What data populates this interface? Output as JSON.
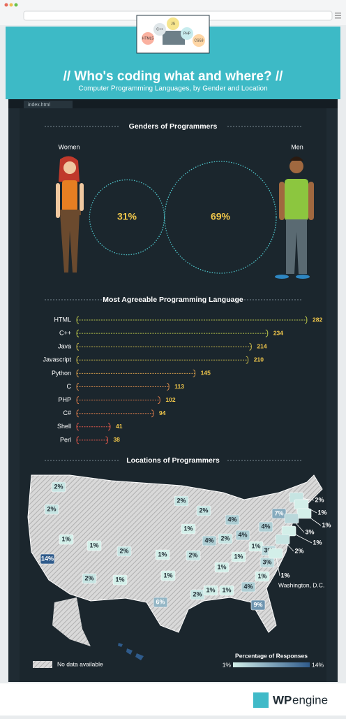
{
  "header": {
    "title": "//  Who's coding what and where?  //",
    "subtitle": "Computer Programming Languages, by Gender and Location",
    "tab": "index.html",
    "icons": [
      "JS",
      "C++",
      "HTML5",
      "PHP",
      "CSS3"
    ]
  },
  "chart_data": [
    {
      "type": "bubble",
      "title": "Genders of Programmers",
      "categories": [
        "Women",
        "Men"
      ],
      "values": [
        31,
        69
      ],
      "value_labels": [
        "31%",
        "69%"
      ],
      "color": "#4ec3c9"
    },
    {
      "type": "bar",
      "title": "Most Agreeable Programming Language",
      "categories": [
        "HTML",
        "C++",
        "Java",
        "Javascript",
        "Python",
        "C",
        "PHP",
        "C#",
        "Shell",
        "Perl"
      ],
      "values": [
        282,
        234,
        214,
        210,
        145,
        113,
        102,
        94,
        41,
        38
      ],
      "colors": [
        "#b7c24a",
        "#b7c24a",
        "#c6b64a",
        "#c6b64a",
        "#d19a4a",
        "#d4894a",
        "#d77a4a",
        "#d77a4a",
        "#e0584a",
        "#e0584a"
      ],
      "label_color": "#f2c84b"
    },
    {
      "type": "map",
      "title": "Locations of Programmers",
      "values": [
        2,
        2,
        14,
        1,
        1,
        2,
        2,
        1,
        1,
        2,
        1,
        6,
        2,
        2,
        1,
        4,
        2,
        4,
        4,
        1,
        1,
        4,
        7,
        3,
        3,
        1,
        2,
        1,
        1,
        4,
        9,
        1,
        2,
        1,
        1,
        3,
        1,
        2,
        1
      ],
      "value_labels": [
        "2%",
        "2%",
        "14%",
        "1%",
        "1%",
        "2%",
        "2%",
        "1%",
        "1%",
        "2%",
        "1%",
        "6%",
        "2%",
        "2%",
        "1%",
        "4%",
        "2%",
        "4%",
        "4%",
        "1%",
        "1%",
        "4%",
        "7%",
        "3%",
        "3%",
        "1%",
        "2%",
        "1%",
        "1%",
        "4%",
        "9%",
        "1%",
        "2%",
        "1%",
        "1%",
        "3%",
        "1%",
        "2%",
        "1%"
      ],
      "annotation": "Washington, D.C.",
      "no_data_label": "No data available",
      "legend_title": "Percentage of Responses",
      "legend_ticks": [
        {
          "value": 1,
          "label": "1%"
        },
        {
          "value": 14,
          "label": "14%"
        }
      ],
      "colors": [
        "#d3efe9",
        "#2f5b8b"
      ]
    }
  ],
  "footer": {
    "logo_bold": "WP",
    "logo_light": "engine"
  }
}
